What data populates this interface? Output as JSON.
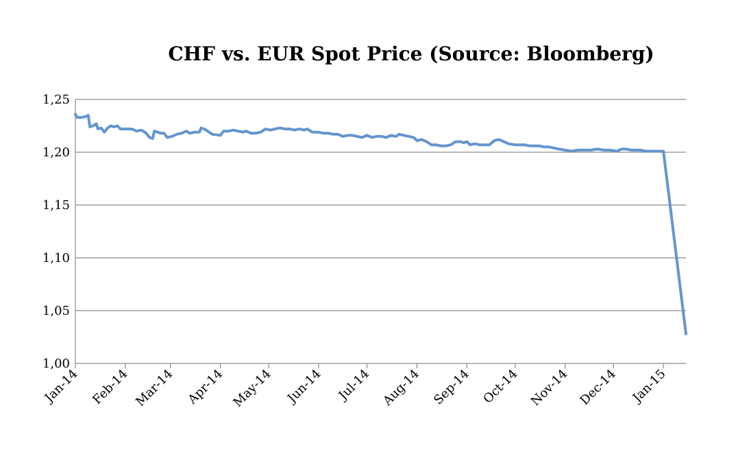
{
  "chart_data": {
    "type": "line",
    "title": "CHF vs. EUR Spot Price (Source: Bloomberg)",
    "xlabel": "",
    "ylabel": "",
    "ylim": [
      1.0,
      1.25
    ],
    "y_ticks": [
      "1,00",
      "1,05",
      "1,10",
      "1,15",
      "1,20",
      "1,25"
    ],
    "y_tick_values": [
      1.0,
      1.05,
      1.1,
      1.15,
      1.2,
      1.25
    ],
    "x_ticks": [
      "Jan-14",
      "Feb-14",
      "Mar-14",
      "Apr-14",
      "May-14",
      "Jun-14",
      "Jul-14",
      "Aug-14",
      "Sep-14",
      "Oct-14",
      "Nov-14",
      "Dec-14",
      "Jan-15"
    ],
    "x_tick_dates": [
      "2014-01-01",
      "2014-02-01",
      "2014-03-01",
      "2014-04-01",
      "2014-05-01",
      "2014-06-01",
      "2014-07-01",
      "2014-08-01",
      "2014-09-01",
      "2014-10-01",
      "2014-11-01",
      "2014-12-01",
      "2015-01-01"
    ],
    "x_range": [
      "2014-01-01",
      "2015-01-15"
    ],
    "grid": "horizontal",
    "legend": "none",
    "series": [
      {
        "color": "#6495cf",
        "points": [
          [
            "2014-01-01",
            1.236
          ],
          [
            "2014-01-02",
            1.233
          ],
          [
            "2014-01-05",
            1.233
          ],
          [
            "2014-01-08",
            1.234
          ],
          [
            "2014-01-09",
            1.235
          ],
          [
            "2014-01-10",
            1.224
          ],
          [
            "2014-01-12",
            1.225
          ],
          [
            "2014-01-14",
            1.227
          ],
          [
            "2014-01-15",
            1.222
          ],
          [
            "2014-01-17",
            1.223
          ],
          [
            "2014-01-19",
            1.219
          ],
          [
            "2014-01-21",
            1.223
          ],
          [
            "2014-01-23",
            1.225
          ],
          [
            "2014-01-25",
            1.224
          ],
          [
            "2014-01-27",
            1.225
          ],
          [
            "2014-01-29",
            1.222
          ],
          [
            "2014-02-01",
            1.222
          ],
          [
            "2014-02-05",
            1.222
          ],
          [
            "2014-02-08",
            1.22
          ],
          [
            "2014-02-11",
            1.221
          ],
          [
            "2014-02-14",
            1.218
          ],
          [
            "2014-02-16",
            1.214
          ],
          [
            "2014-02-18",
            1.213
          ],
          [
            "2014-02-19",
            1.22
          ],
          [
            "2014-02-21",
            1.219
          ],
          [
            "2014-02-23",
            1.218
          ],
          [
            "2014-02-25",
            1.218
          ],
          [
            "2014-02-27",
            1.214
          ],
          [
            "2014-03-02",
            1.215
          ],
          [
            "2014-03-05",
            1.217
          ],
          [
            "2014-03-08",
            1.218
          ],
          [
            "2014-03-11",
            1.22
          ],
          [
            "2014-03-13",
            1.218
          ],
          [
            "2014-03-16",
            1.219
          ],
          [
            "2014-03-19",
            1.219
          ],
          [
            "2014-03-20",
            1.223
          ],
          [
            "2014-03-22",
            1.222
          ],
          [
            "2014-03-25",
            1.219
          ],
          [
            "2014-03-27",
            1.217
          ],
          [
            "2014-04-01",
            1.216
          ],
          [
            "2014-04-03",
            1.22
          ],
          [
            "2014-04-06",
            1.22
          ],
          [
            "2014-04-09",
            1.221
          ],
          [
            "2014-04-12",
            1.22
          ],
          [
            "2014-04-15",
            1.219
          ],
          [
            "2014-04-17",
            1.22
          ],
          [
            "2014-04-20",
            1.218
          ],
          [
            "2014-04-23",
            1.218
          ],
          [
            "2014-04-26",
            1.219
          ],
          [
            "2014-04-29",
            1.222
          ],
          [
            "2014-05-02",
            1.221
          ],
          [
            "2014-05-05",
            1.222
          ],
          [
            "2014-05-08",
            1.223
          ],
          [
            "2014-05-11",
            1.222
          ],
          [
            "2014-05-14",
            1.222
          ],
          [
            "2014-05-17",
            1.221
          ],
          [
            "2014-05-20",
            1.222
          ],
          [
            "2014-05-23",
            1.221
          ],
          [
            "2014-05-25",
            1.222
          ],
          [
            "2014-05-28",
            1.219
          ],
          [
            "2014-06-01",
            1.219
          ],
          [
            "2014-06-04",
            1.218
          ],
          [
            "2014-06-07",
            1.218
          ],
          [
            "2014-06-10",
            1.217
          ],
          [
            "2014-06-13",
            1.217
          ],
          [
            "2014-06-16",
            1.215
          ],
          [
            "2014-06-19",
            1.216
          ],
          [
            "2014-06-22",
            1.216
          ],
          [
            "2014-06-25",
            1.215
          ],
          [
            "2014-06-28",
            1.214
          ],
          [
            "2014-07-01",
            1.216
          ],
          [
            "2014-07-04",
            1.214
          ],
          [
            "2014-07-07",
            1.215
          ],
          [
            "2014-07-10",
            1.215
          ],
          [
            "2014-07-13",
            1.214
          ],
          [
            "2014-07-16",
            1.216
          ],
          [
            "2014-07-19",
            1.215
          ],
          [
            "2014-07-21",
            1.217
          ],
          [
            "2014-07-24",
            1.216
          ],
          [
            "2014-07-27",
            1.215
          ],
          [
            "2014-07-30",
            1.214
          ],
          [
            "2014-08-01",
            1.211
          ],
          [
            "2014-08-04",
            1.212
          ],
          [
            "2014-08-07",
            1.21
          ],
          [
            "2014-08-10",
            1.207
          ],
          [
            "2014-08-13",
            1.207
          ],
          [
            "2014-08-16",
            1.206
          ],
          [
            "2014-08-19",
            1.206
          ],
          [
            "2014-08-22",
            1.207
          ],
          [
            "2014-08-25",
            1.21
          ],
          [
            "2014-08-28",
            1.21
          ],
          [
            "2014-08-30",
            1.209
          ],
          [
            "2014-09-01",
            1.21
          ],
          [
            "2014-09-03",
            1.207
          ],
          [
            "2014-09-06",
            1.208
          ],
          [
            "2014-09-09",
            1.207
          ],
          [
            "2014-09-12",
            1.207
          ],
          [
            "2014-09-15",
            1.207
          ],
          [
            "2014-09-18",
            1.211
          ],
          [
            "2014-09-21",
            1.212
          ],
          [
            "2014-09-24",
            1.21
          ],
          [
            "2014-09-27",
            1.208
          ],
          [
            "2014-10-01",
            1.207
          ],
          [
            "2014-10-04",
            1.207
          ],
          [
            "2014-10-07",
            1.207
          ],
          [
            "2014-10-10",
            1.206
          ],
          [
            "2014-10-13",
            1.206
          ],
          [
            "2014-10-16",
            1.206
          ],
          [
            "2014-10-19",
            1.205
          ],
          [
            "2014-10-22",
            1.205
          ],
          [
            "2014-10-25",
            1.204
          ],
          [
            "2014-10-28",
            1.203
          ],
          [
            "2014-11-01",
            1.202
          ],
          [
            "2014-11-05",
            1.201
          ],
          [
            "2014-11-09",
            1.202
          ],
          [
            "2014-11-13",
            1.202
          ],
          [
            "2014-11-17",
            1.202
          ],
          [
            "2014-11-21",
            1.203
          ],
          [
            "2014-11-25",
            1.202
          ],
          [
            "2014-11-29",
            1.202
          ],
          [
            "2014-12-03",
            1.201
          ],
          [
            "2014-12-06",
            1.203
          ],
          [
            "2014-12-09",
            1.203
          ],
          [
            "2014-12-12",
            1.202
          ],
          [
            "2014-12-15",
            1.202
          ],
          [
            "2014-12-18",
            1.202
          ],
          [
            "2014-12-21",
            1.201
          ],
          [
            "2014-12-24",
            1.201
          ],
          [
            "2014-12-28",
            1.201
          ],
          [
            "2014-12-31",
            1.201
          ],
          [
            "2015-01-01",
            1.201
          ],
          [
            "2015-01-15",
            1.028
          ]
        ]
      }
    ]
  }
}
